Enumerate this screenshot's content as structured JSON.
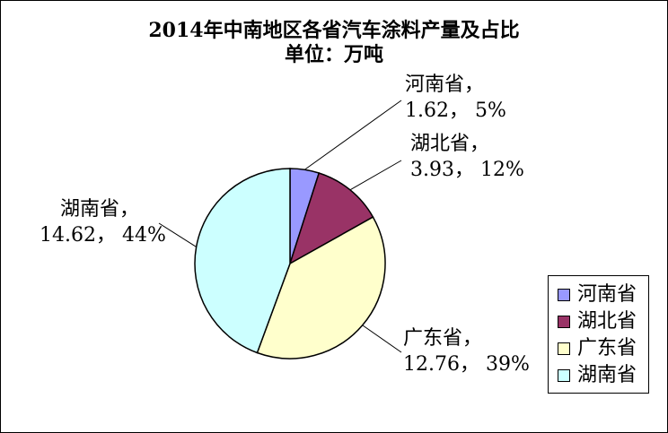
{
  "chart_data": {
    "type": "pie",
    "title": "2014年中南地区各省汽车涂料产量及占比",
    "subtitle": "单位：万吨",
    "slices": [
      {
        "name": "河南省",
        "value": 1.62,
        "percent": "5%",
        "color": "#9999FF"
      },
      {
        "name": "湖北省",
        "value": 3.93,
        "percent": "12%",
        "color": "#993366"
      },
      {
        "name": "广东省",
        "value": 12.76,
        "percent": "39%",
        "color": "#FFFFCC"
      },
      {
        "name": "湖南省",
        "value": 14.62,
        "percent": "44%",
        "color": "#CCFFFF"
      }
    ],
    "legend_position": "right"
  }
}
